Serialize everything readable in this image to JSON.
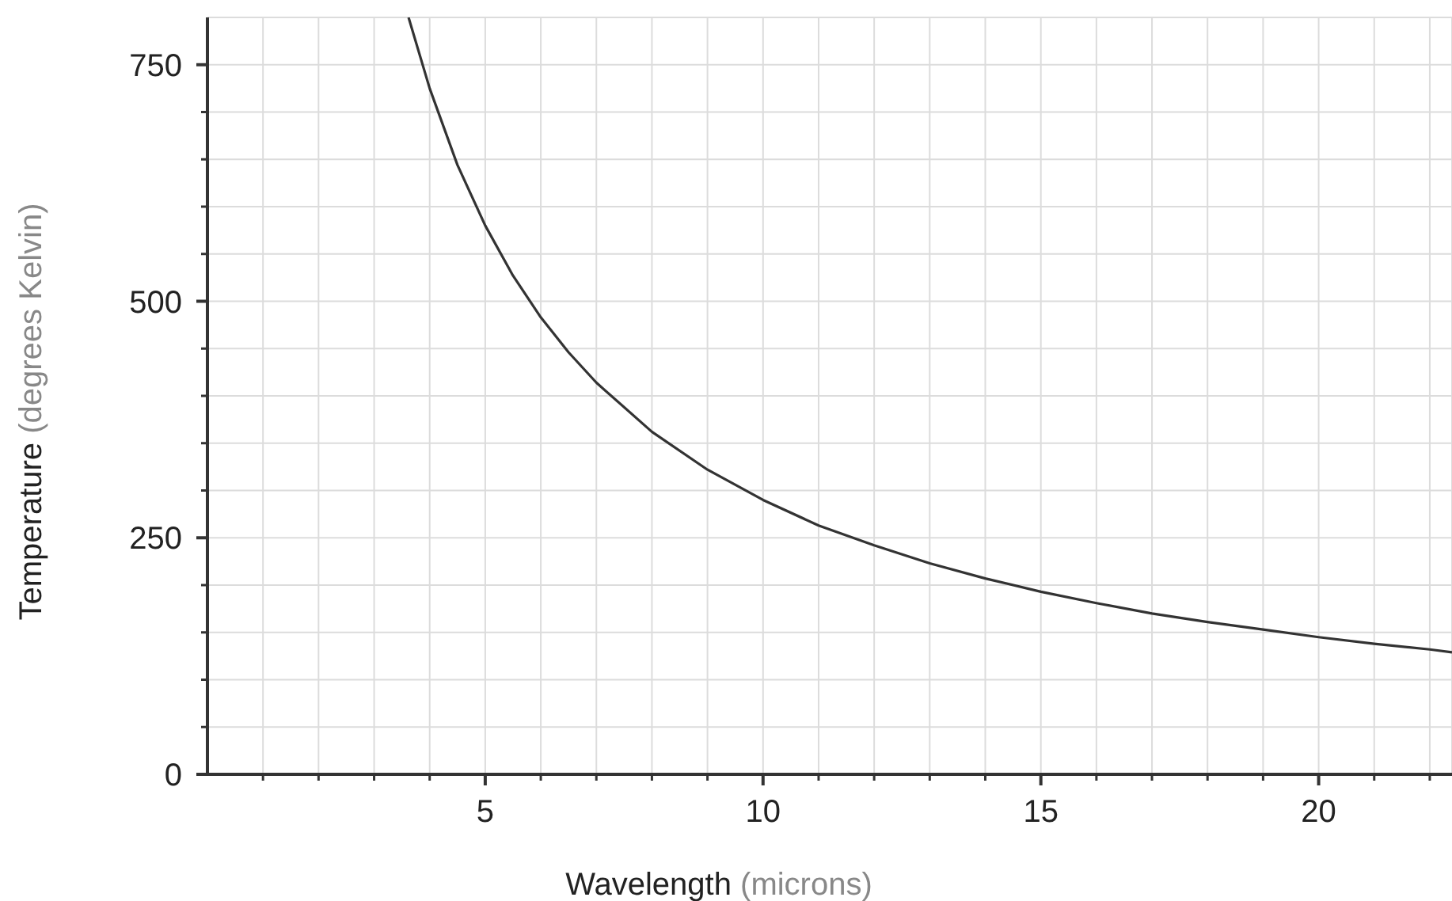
{
  "chart_data": {
    "type": "line",
    "xlabel": "Wavelength  (microns)",
    "ylabel": "Temperature  (degrees Kelvin)",
    "xlim": [
      0,
      22.4
    ],
    "ylim": [
      0,
      800
    ],
    "xticks": [
      {
        "value": 1,
        "label": null
      },
      {
        "value": 2,
        "label": null
      },
      {
        "value": 3,
        "label": null
      },
      {
        "value": 4,
        "label": null
      },
      5,
      {
        "value": 6,
        "label": null
      },
      {
        "value": 7,
        "label": null
      },
      {
        "value": 8,
        "label": null
      },
      {
        "value": 9,
        "label": null
      },
      10,
      {
        "value": 11,
        "label": null
      },
      {
        "value": 12,
        "label": null
      },
      {
        "value": 13,
        "label": null
      },
      {
        "value": 14,
        "label": null
      },
      15,
      {
        "value": 16,
        "label": null
      },
      {
        "value": 17,
        "label": null
      },
      {
        "value": 18,
        "label": null
      },
      {
        "value": 19,
        "label": null
      },
      20,
      {
        "value": 21,
        "label": null
      },
      {
        "value": 22,
        "label": null
      }
    ],
    "yticks": [
      0,
      {
        "value": 50,
        "label": null
      },
      {
        "value": 100,
        "label": null
      },
      {
        "value": 150,
        "label": null
      },
      {
        "value": 200,
        "label": null
      },
      250,
      {
        "value": 300,
        "label": null
      },
      {
        "value": 350,
        "label": null
      },
      {
        "value": 400,
        "label": null
      },
      {
        "value": 450,
        "label": null
      },
      500,
      {
        "value": 550,
        "label": null
      },
      {
        "value": 600,
        "label": null
      },
      {
        "value": 650,
        "label": null
      },
      {
        "value": 700,
        "label": null
      },
      750
    ],
    "grid": true,
    "marker": "none",
    "line_style": "solid",
    "series": [
      {
        "color": "#333333",
        "x": [
          3.62,
          4,
          4.5,
          5,
          5.5,
          6,
          6.5,
          7,
          8,
          9,
          10,
          11,
          12,
          13,
          14,
          15,
          16,
          17,
          18,
          19,
          20,
          21,
          22,
          22.4
        ],
        "values": [
          800,
          725,
          644,
          580,
          527,
          483,
          446,
          414,
          362,
          322,
          290,
          263,
          242,
          223,
          207,
          193,
          181,
          170,
          161,
          153,
          145,
          138,
          132,
          129
        ]
      }
    ]
  }
}
